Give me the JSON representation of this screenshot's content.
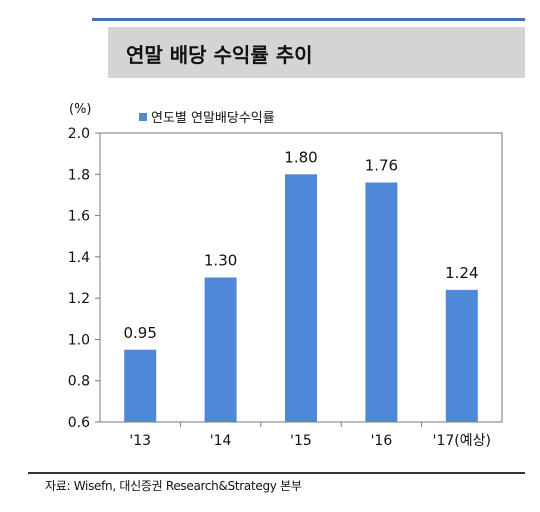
{
  "title": "연말 배당 수익률 추이",
  "source": "자료: Wisefn, 대신증권 Research&Strategy 본부",
  "chart_data": {
    "type": "bar",
    "ylabel": "(%)",
    "ylim": [
      0.6,
      2.0
    ],
    "yticks": [
      "2.0",
      "1.8",
      "1.6",
      "1.4",
      "1.2",
      "1.0",
      "0.8",
      "0.6"
    ],
    "categories": [
      "'13",
      "'14",
      "'15",
      "'16",
      "'17(예상)"
    ],
    "series": [
      {
        "name": "연도별 연말배당수익률",
        "values": [
          0.95,
          1.3,
          1.8,
          1.76,
          1.24
        ],
        "labels": [
          "0.95",
          "1.30",
          "1.80",
          "1.76",
          "1.24"
        ],
        "color": "#4f88d6"
      }
    ],
    "grid": false,
    "legend": "top-left"
  }
}
